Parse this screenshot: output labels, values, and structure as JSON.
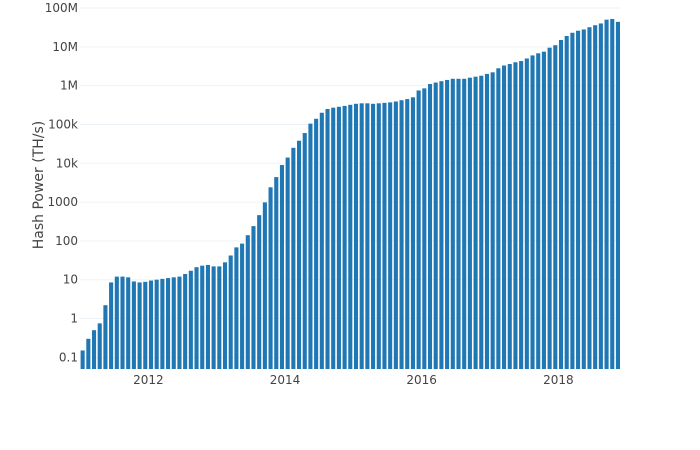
{
  "colors": {
    "bar": "#1f77b4",
    "grid": "#eef3f8",
    "text": "#444444",
    "background": "#ffffff"
  },
  "chart_data": {
    "type": "bar",
    "title": "",
    "xlabel": "",
    "ylabel": "Hash Power (TH/s)",
    "yscale": "log",
    "ylim": [
      0.05,
      100000000
    ],
    "xlim": [
      "2011-01",
      "2018-11"
    ],
    "grid": true,
    "legend": "none",
    "y_ticks": [
      {
        "value": 0.1,
        "label": "0.1"
      },
      {
        "value": 1,
        "label": "1"
      },
      {
        "value": 10,
        "label": "10"
      },
      {
        "value": 100,
        "label": "100"
      },
      {
        "value": 1000,
        "label": "1000"
      },
      {
        "value": 10000,
        "label": "10k"
      },
      {
        "value": 100000,
        "label": "100k"
      },
      {
        "value": 1000000,
        "label": "1M"
      },
      {
        "value": 10000000,
        "label": "10M"
      },
      {
        "value": 100000000,
        "label": "100M"
      }
    ],
    "x_ticks": [
      {
        "value": "2012-01",
        "label": "2012"
      },
      {
        "value": "2014-01",
        "label": "2014"
      },
      {
        "value": "2016-01",
        "label": "2016"
      },
      {
        "value": "2018-01",
        "label": "2018"
      }
    ],
    "series": [
      {
        "x": [
          "2011-01",
          "2011-02",
          "2011-03",
          "2011-04",
          "2011-05",
          "2011-06",
          "2011-07",
          "2011-08",
          "2011-09",
          "2011-10",
          "2011-11",
          "2011-12",
          "2012-01",
          "2012-02",
          "2012-03",
          "2012-04",
          "2012-05",
          "2012-06",
          "2012-07",
          "2012-08",
          "2012-09",
          "2012-10",
          "2012-11",
          "2012-12",
          "2013-01",
          "2013-02",
          "2013-03",
          "2013-04",
          "2013-05",
          "2013-06",
          "2013-07",
          "2013-08",
          "2013-09",
          "2013-10",
          "2013-11",
          "2013-12",
          "2014-01",
          "2014-02",
          "2014-03",
          "2014-04",
          "2014-05",
          "2014-06",
          "2014-07",
          "2014-08",
          "2014-09",
          "2014-10",
          "2014-11",
          "2014-12",
          "2015-01",
          "2015-02",
          "2015-03",
          "2015-04",
          "2015-05",
          "2015-06",
          "2015-07",
          "2015-08",
          "2015-09",
          "2015-10",
          "2015-11",
          "2015-12",
          "2016-01",
          "2016-02",
          "2016-03",
          "2016-04",
          "2016-05",
          "2016-06",
          "2016-07",
          "2016-08",
          "2016-09",
          "2016-10",
          "2016-11",
          "2016-12",
          "2017-01",
          "2017-02",
          "2017-03",
          "2017-04",
          "2017-05",
          "2017-06",
          "2017-07",
          "2017-08",
          "2017-09",
          "2017-10",
          "2017-11",
          "2017-12",
          "2018-01",
          "2018-02",
          "2018-03",
          "2018-04",
          "2018-05",
          "2018-06",
          "2018-07",
          "2018-08",
          "2018-09",
          "2018-10",
          "2018-11"
        ],
        "values": [
          0.15,
          0.3,
          0.5,
          0.75,
          2.2,
          8.5,
          12,
          12,
          11.5,
          9,
          8.5,
          8.8,
          9.5,
          10,
          10.5,
          11,
          11.5,
          12,
          14,
          17,
          21,
          23,
          24,
          22,
          22,
          28,
          42,
          68,
          85,
          140,
          240,
          460,
          980,
          2400,
          4400,
          9000,
          14000,
          25000,
          38000,
          60000,
          105000,
          140000,
          200000,
          250000,
          270000,
          285000,
          300000,
          320000,
          340000,
          350000,
          350000,
          340000,
          350000,
          360000,
          370000,
          390000,
          420000,
          450000,
          500000,
          750000,
          850000,
          1100000,
          1200000,
          1300000,
          1400000,
          1500000,
          1500000,
          1500000,
          1600000,
          1700000,
          1800000,
          2000000,
          2200000,
          2800000,
          3300000,
          3600000,
          4000000,
          4300000,
          5000000,
          6000000,
          6800000,
          7500000,
          9500000,
          11000000,
          15000000,
          19000000,
          23000000,
          26000000,
          28000000,
          32000000,
          36000000,
          40000000,
          50000000,
          52000000,
          44000000
        ]
      }
    ]
  }
}
